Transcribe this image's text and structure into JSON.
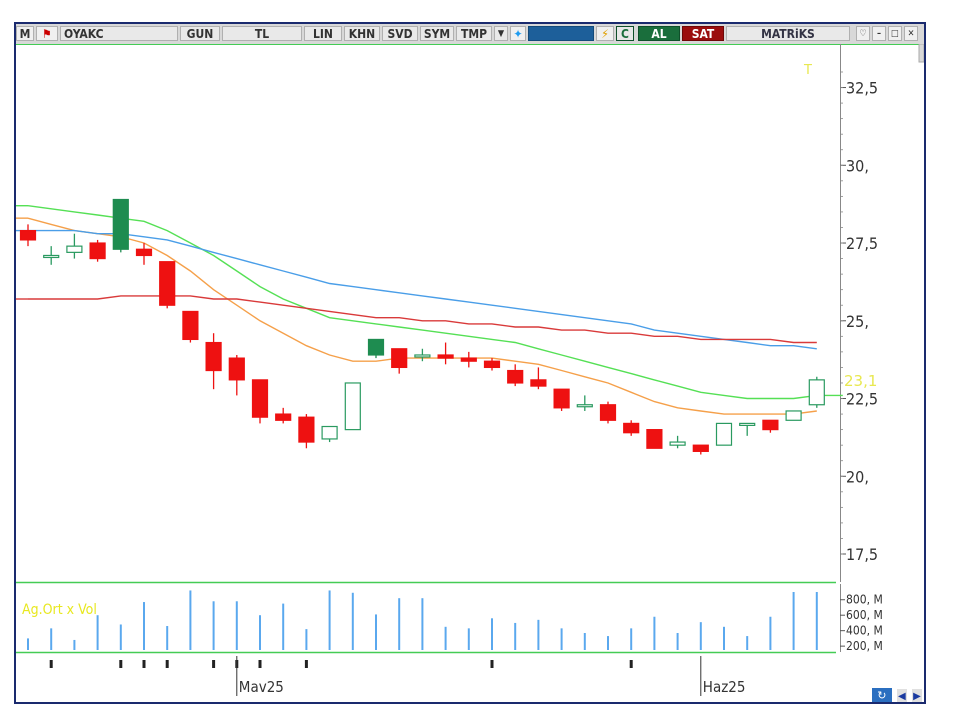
{
  "toolbar": {
    "menu_label": "M",
    "symbol": "OYAKC",
    "period": "GUN",
    "currency": "TL",
    "scale": "LIN",
    "btn_khn": "KHN",
    "btn_svd": "SVD",
    "btn_sym": "SYM",
    "btn_tmp": "TMP",
    "btn_c": "C",
    "buy_label": "AL",
    "sell_label": "SAT",
    "matriks_label": "MATRiKS"
  },
  "colors": {
    "up_candle": "#1e8c50",
    "down_candle": "#ee1111",
    "ma_orange": "#f5a04a",
    "ma_green": "#55e055",
    "ma_blue": "#4a9ee8",
    "ma_red": "#d93a3a",
    "volume_bar": "#5aa8ee",
    "axis_text": "#333333",
    "last_price_text": "#e8e850",
    "vol_label_text": "#e8e820"
  },
  "chart_data": {
    "type": "candlestick",
    "symbol": "OYAKC",
    "y_ticks": [
      "32,5",
      "30,",
      "27,5",
      "25,",
      "22,5",
      "20,",
      "17,5"
    ],
    "y_tick_values": [
      32.5,
      30,
      27.5,
      25,
      22.5,
      20,
      17.5
    ],
    "ylim": [
      16.6,
      33.9
    ],
    "last_price_label": "23,1",
    "last_price": 23.1,
    "x_labels": [
      {
        "label": "Mav25",
        "index": 9
      },
      {
        "label": "Haz25",
        "index": 29
      }
    ],
    "candles": [
      {
        "o": 27.9,
        "h": 28.1,
        "c": 27.6,
        "l": 27.4
      },
      {
        "o": 27.1,
        "h": 27.4,
        "c": 27.1,
        "l": 26.8
      },
      {
        "o": 27.2,
        "h": 27.8,
        "c": 27.4,
        "l": 27.0
      },
      {
        "o": 27.5,
        "h": 27.6,
        "c": 27.0,
        "l": 26.9
      },
      {
        "o": 27.3,
        "h": 28.9,
        "c": 28.9,
        "l": 27.2
      },
      {
        "o": 27.3,
        "h": 27.5,
        "c": 27.1,
        "l": 26.8
      },
      {
        "o": 26.9,
        "h": 26.9,
        "c": 25.5,
        "l": 25.4
      },
      {
        "o": 25.3,
        "h": 25.3,
        "c": 24.4,
        "l": 24.3
      },
      {
        "o": 24.3,
        "h": 24.6,
        "c": 23.4,
        "l": 22.8
      },
      {
        "o": 23.8,
        "h": 23.9,
        "c": 23.1,
        "l": 22.6
      },
      {
        "o": 23.1,
        "h": 23.1,
        "c": 21.9,
        "l": 21.7
      },
      {
        "o": 22.0,
        "h": 22.2,
        "c": 21.8,
        "l": 21.7
      },
      {
        "o": 21.9,
        "h": 22.0,
        "c": 21.1,
        "l": 20.9
      },
      {
        "o": 21.2,
        "h": 21.6,
        "c": 21.6,
        "l": 21.1
      },
      {
        "o": 21.5,
        "h": 23.0,
        "c": 23.0,
        "l": 21.5
      },
      {
        "o": 23.9,
        "h": 24.4,
        "c": 24.4,
        "l": 23.8
      },
      {
        "o": 24.1,
        "h": 24.1,
        "c": 23.5,
        "l": 23.3
      },
      {
        "o": 23.9,
        "h": 24.1,
        "c": 23.9,
        "l": 23.7
      },
      {
        "o": 23.9,
        "h": 24.3,
        "c": 23.8,
        "l": 23.6
      },
      {
        "o": 23.8,
        "h": 24.0,
        "c": 23.7,
        "l": 23.5
      },
      {
        "o": 23.7,
        "h": 23.8,
        "c": 23.5,
        "l": 23.4
      },
      {
        "o": 23.4,
        "h": 23.6,
        "c": 23.0,
        "l": 22.9
      },
      {
        "o": 23.1,
        "h": 23.5,
        "c": 22.9,
        "l": 22.8
      },
      {
        "o": 22.8,
        "h": 22.8,
        "c": 22.2,
        "l": 22.1
      },
      {
        "o": 22.3,
        "h": 22.6,
        "c": 22.3,
        "l": 22.1
      },
      {
        "o": 22.3,
        "h": 22.4,
        "c": 21.8,
        "l": 21.7
      },
      {
        "o": 21.7,
        "h": 21.8,
        "c": 21.4,
        "l": 21.3
      },
      {
        "o": 21.5,
        "h": 21.5,
        "c": 20.9,
        "l": 20.9
      },
      {
        "o": 21.0,
        "h": 21.3,
        "c": 21.1,
        "l": 20.9
      },
      {
        "o": 21.0,
        "h": 21.0,
        "c": 20.8,
        "l": 20.7
      },
      {
        "o": 21.0,
        "h": 21.7,
        "c": 21.7,
        "l": 21.0
      },
      {
        "o": 21.7,
        "h": 21.7,
        "c": 21.7,
        "l": 21.3
      },
      {
        "o": 21.8,
        "h": 21.8,
        "c": 21.5,
        "l": 21.4
      },
      {
        "o": 21.8,
        "h": 22.1,
        "c": 22.1,
        "l": 21.8
      },
      {
        "o": 22.3,
        "h": 23.2,
        "c": 23.1,
        "l": 22.2
      }
    ],
    "ma_series": [
      {
        "color": "orange",
        "values": [
          28.3,
          28.1,
          27.9,
          27.8,
          27.7,
          27.5,
          27.1,
          26.6,
          26.0,
          25.5,
          25.0,
          24.6,
          24.2,
          23.9,
          23.7,
          23.7,
          23.8,
          23.8,
          23.8,
          23.8,
          23.8,
          23.7,
          23.6,
          23.4,
          23.2,
          23.0,
          22.7,
          22.4,
          22.2,
          22.1,
          22.0,
          22.0,
          22.0,
          22.0,
          22.1
        ]
      },
      {
        "color": "green",
        "values": [
          28.7,
          28.6,
          28.5,
          28.4,
          28.3,
          28.2,
          27.9,
          27.5,
          27.1,
          26.6,
          26.1,
          25.7,
          25.4,
          25.1,
          25.0,
          24.9,
          24.8,
          24.7,
          24.6,
          24.5,
          24.4,
          24.3,
          24.1,
          23.9,
          23.7,
          23.5,
          23.3,
          23.1,
          22.9,
          22.7,
          22.6,
          22.5,
          22.5,
          22.5,
          22.6
        ]
      },
      {
        "color": "blue",
        "values": [
          27.9,
          27.9,
          27.9,
          27.8,
          27.8,
          27.7,
          27.6,
          27.4,
          27.2,
          27.0,
          26.8,
          26.6,
          26.4,
          26.2,
          26.1,
          26.0,
          25.9,
          25.8,
          25.7,
          25.6,
          25.5,
          25.4,
          25.3,
          25.2,
          25.1,
          25.0,
          24.9,
          24.7,
          24.6,
          24.5,
          24.4,
          24.3,
          24.2,
          24.2,
          24.1
        ]
      },
      {
        "color": "red",
        "values": [
          25.7,
          25.7,
          25.7,
          25.7,
          25.8,
          25.8,
          25.8,
          25.8,
          25.7,
          25.7,
          25.6,
          25.5,
          25.4,
          25.3,
          25.2,
          25.1,
          25.1,
          25.0,
          25.0,
          24.9,
          24.9,
          24.8,
          24.8,
          24.7,
          24.7,
          24.6,
          24.6,
          24.5,
          24.5,
          24.4,
          24.4,
          24.4,
          24.4,
          24.3,
          24.3
        ]
      }
    ],
    "volume": {
      "label": "Ag.Ort x Vol",
      "y_ticks": [
        "800, M",
        "600, M",
        "400, M",
        "200, M"
      ],
      "y_tick_values": [
        800,
        600,
        400,
        200
      ],
      "unit": "M",
      "ylim": [
        150,
        900
      ],
      "values": [
        300,
        430,
        280,
        600,
        480,
        770,
        460,
        920,
        780,
        780,
        600,
        750,
        420,
        920,
        890,
        610,
        820,
        820,
        450,
        430,
        560,
        500,
        540,
        430,
        370,
        330,
        430,
        580,
        370,
        510,
        450,
        330,
        580,
        900,
        900
      ]
    },
    "x_tick_marks": [
      1,
      4,
      5,
      6,
      8,
      9,
      10,
      12,
      20,
      26
    ]
  }
}
